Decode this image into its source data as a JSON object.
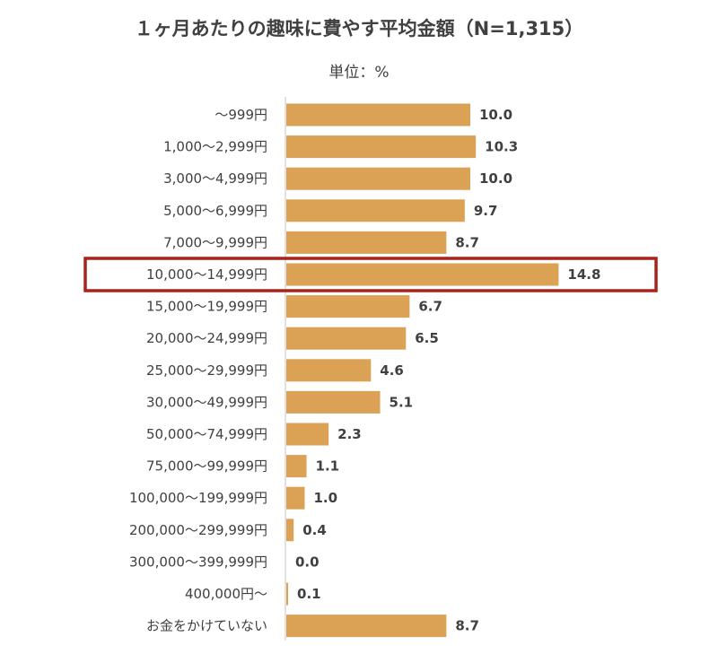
{
  "title": "１ヶ月あたりの趣味に費やす平均金額（N=1,315）",
  "unit_label": "単位：%",
  "colors": {
    "bar": "#DBA154",
    "highlight_border": "#A8231C",
    "axis": "#D9D9D9",
    "text": "#404040"
  },
  "chart_data": {
    "type": "bar",
    "orientation": "horizontal",
    "title": "１ヶ月あたりの趣味に費やす平均金額（N=1,315）",
    "unit": "単位：%",
    "categories": [
      "～999円",
      "1,000～2,999円",
      "3,000～4,999円",
      "5,000～6,999円",
      "7,000～9,999円",
      "10,000～14,999円",
      "15,000～19,999円",
      "20,000～24,999円",
      "25,000～29,999円",
      "30,000～49,999円",
      "50,000～74,999円",
      "75,000～99,999円",
      "100,000～199,999円",
      "200,000～299,999円",
      "300,000～399,999円",
      "400,000円～",
      "お金をかけていない"
    ],
    "values": [
      10.0,
      10.3,
      10.0,
      9.7,
      8.7,
      14.8,
      6.7,
      6.5,
      4.6,
      5.1,
      2.3,
      1.1,
      1.0,
      0.4,
      0.0,
      0.1,
      8.7
    ],
    "value_labels": [
      "10.0",
      "10.3",
      "10.0",
      "9.7",
      "8.7",
      "14.8",
      "6.7",
      "6.5",
      "4.6",
      "5.1",
      "2.3",
      "1.1",
      "1.0",
      "0.4",
      "0.0",
      "0.1",
      "8.7"
    ],
    "highlighted_category": "10,000～14,999円",
    "grid": false
  }
}
